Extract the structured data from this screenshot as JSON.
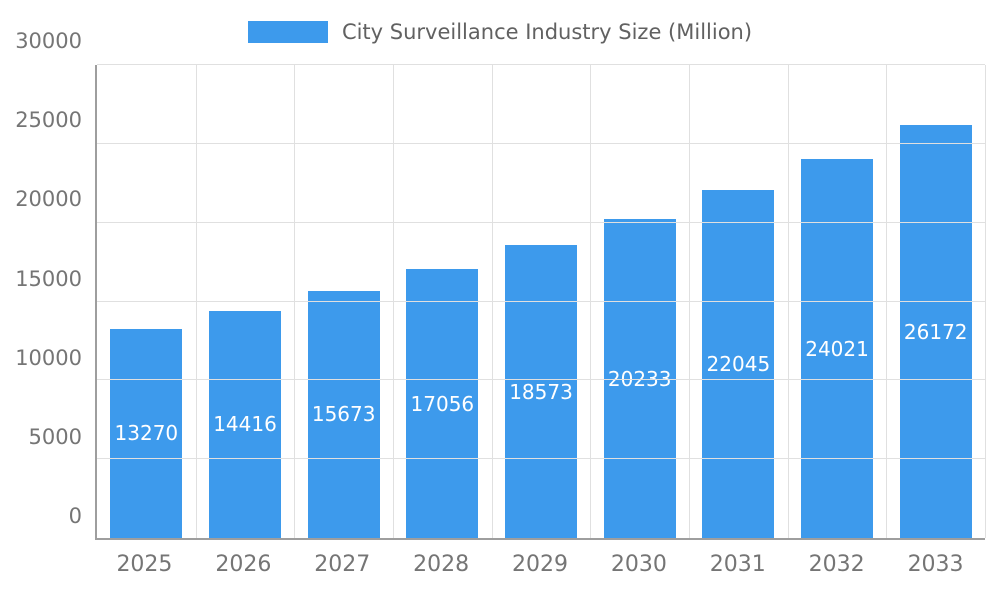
{
  "chart_data": {
    "type": "bar",
    "title": "City Surveillance Industry Size (Million)",
    "categories": [
      "2025",
      "2026",
      "2027",
      "2028",
      "2029",
      "2030",
      "2031",
      "2032",
      "2033"
    ],
    "values": [
      13270,
      14416,
      15673,
      17056,
      18573,
      20233,
      22045,
      24021,
      26172
    ],
    "xlabel": "",
    "ylabel": "",
    "ylim": [
      0,
      30000
    ],
    "yticks": [
      0,
      5000,
      10000,
      15000,
      20000,
      25000,
      30000
    ],
    "grid": true,
    "legend_position": "top",
    "bar_color": "#3d9aec",
    "value_label_color": "#ffffff"
  }
}
